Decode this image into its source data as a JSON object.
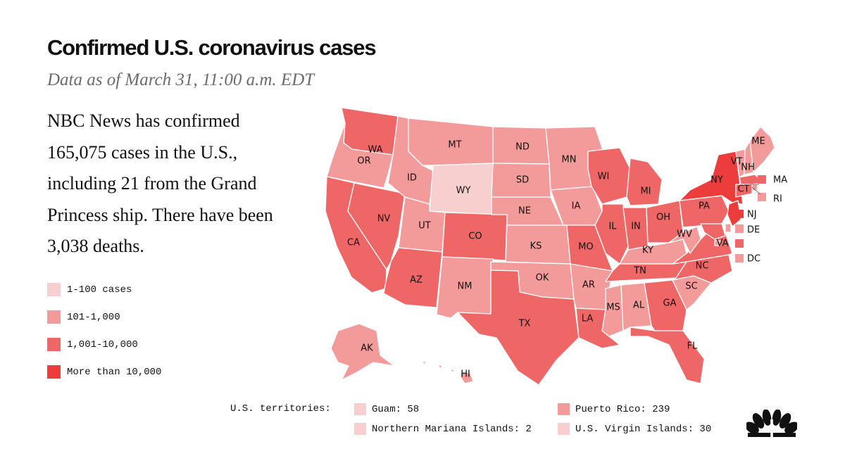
{
  "header": {
    "title": "Confirmed U.S. coronavirus cases",
    "subtitle": "Data as of March 31, 11:00 a.m. EDT"
  },
  "summary": {
    "text": "NBC News has confirmed 165,075 cases in the U.S., including 21 from the Grand Princess ship.  There have been 3,038 deaths."
  },
  "legend": {
    "items": [
      {
        "label": "1-100 cases",
        "color": "#f8cfcf"
      },
      {
        "label": "101-1,000",
        "color": "#f39a9a"
      },
      {
        "label": "1,001-10,000",
        "color": "#ee6666"
      },
      {
        "label": "More than 10,000",
        "color": "#ec3c3c"
      }
    ]
  },
  "colors": {
    "tier1": "#f8cfcf",
    "tier2": "#f39a9a",
    "tier3": "#ee6666",
    "tier4": "#ec3c3c"
  },
  "map": {
    "states": [
      {
        "code": "WA",
        "label": "WA",
        "tier": 3
      },
      {
        "code": "OR",
        "label": "OR",
        "tier": 2
      },
      {
        "code": "CA",
        "label": "CA",
        "tier": 3
      },
      {
        "code": "NV",
        "label": "NV",
        "tier": 3
      },
      {
        "code": "ID",
        "label": "ID",
        "tier": 2
      },
      {
        "code": "MT",
        "label": "MT",
        "tier": 2
      },
      {
        "code": "WY",
        "label": "WY",
        "tier": 1
      },
      {
        "code": "UT",
        "label": "UT",
        "tier": 2
      },
      {
        "code": "AZ",
        "label": "AZ",
        "tier": 3
      },
      {
        "code": "CO",
        "label": "CO",
        "tier": 3
      },
      {
        "code": "NM",
        "label": "NM",
        "tier": 2
      },
      {
        "code": "ND",
        "label": "ND",
        "tier": 2
      },
      {
        "code": "SD",
        "label": "SD",
        "tier": 2
      },
      {
        "code": "NE",
        "label": "NE",
        "tier": 2
      },
      {
        "code": "KS",
        "label": "KS",
        "tier": 2
      },
      {
        "code": "OK",
        "label": "OK",
        "tier": 2
      },
      {
        "code": "TX",
        "label": "TX",
        "tier": 3
      },
      {
        "code": "MN",
        "label": "MN",
        "tier": 2
      },
      {
        "code": "IA",
        "label": "IA",
        "tier": 2
      },
      {
        "code": "MO",
        "label": "MO",
        "tier": 3
      },
      {
        "code": "AR",
        "label": "AR",
        "tier": 2
      },
      {
        "code": "LA",
        "label": "LA",
        "tier": 3
      },
      {
        "code": "WI",
        "label": "WI",
        "tier": 3
      },
      {
        "code": "IL",
        "label": "IL",
        "tier": 3
      },
      {
        "code": "MI",
        "label": "MI",
        "tier": 3
      },
      {
        "code": "IN",
        "label": "IN",
        "tier": 3
      },
      {
        "code": "OH",
        "label": "OH",
        "tier": 3
      },
      {
        "code": "KY",
        "label": "KY",
        "tier": 2
      },
      {
        "code": "TN",
        "label": "TN",
        "tier": 3
      },
      {
        "code": "MS",
        "label": "MS",
        "tier": 2
      },
      {
        "code": "AL",
        "label": "AL",
        "tier": 2
      },
      {
        "code": "GA",
        "label": "GA",
        "tier": 3
      },
      {
        "code": "FL",
        "label": "FL",
        "tier": 3
      },
      {
        "code": "SC",
        "label": "SC",
        "tier": 2
      },
      {
        "code": "NC",
        "label": "NC",
        "tier": 3
      },
      {
        "code": "VA",
        "label": "VA",
        "tier": 3
      },
      {
        "code": "WV",
        "label": "WV",
        "tier": 2
      },
      {
        "code": "PA",
        "label": "PA",
        "tier": 3
      },
      {
        "code": "NY",
        "label": "NY",
        "tier": 4
      },
      {
        "code": "VT",
        "label": "VT",
        "tier": 2
      },
      {
        "code": "NH",
        "label": "NH",
        "tier": 2
      },
      {
        "code": "ME",
        "label": "ME",
        "tier": 2
      },
      {
        "code": "MA",
        "label": "MA",
        "tier": 3
      },
      {
        "code": "RI",
        "label": "RI",
        "tier": 2
      },
      {
        "code": "CT",
        "label": "CT",
        "tier": 3
      },
      {
        "code": "NJ",
        "label": "NJ",
        "tier": 4
      },
      {
        "code": "DE",
        "label": "DE",
        "tier": 2
      },
      {
        "code": "MD",
        "label": "",
        "tier": 3
      },
      {
        "code": "DC",
        "label": "DC",
        "tier": 2
      },
      {
        "code": "AK",
        "label": "AK",
        "tier": 2
      },
      {
        "code": "HI",
        "label": "HI",
        "tier": 2
      }
    ]
  },
  "territories": {
    "title": "U.S. territories:",
    "items": [
      {
        "label": "Guam: 58",
        "tier": 1
      },
      {
        "label": "Northern Mariana Islands: 2",
        "tier": 1
      },
      {
        "label": "Puerto Rico: 239",
        "tier": 2
      },
      {
        "label": "U.S. Virgin Islands: 30",
        "tier": 1
      }
    ]
  },
  "logo": {
    "icon": "peacock-logo-icon"
  }
}
